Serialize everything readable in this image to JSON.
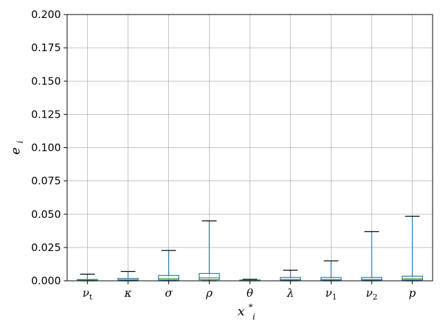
{
  "chart_data": {
    "type": "boxplot",
    "title": "",
    "xlabel": "x",
    "xlabel_sub": "i",
    "xlabel_sup": "*",
    "ylabel": "e",
    "ylabel_sub": "i",
    "ylim": [
      0,
      0.2
    ],
    "yticks": [
      "0.000",
      "0.025",
      "0.050",
      "0.075",
      "0.100",
      "0.125",
      "0.150",
      "0.175",
      "0.200"
    ],
    "grid": true,
    "categories": [
      {
        "base": "ν",
        "sub": "t"
      },
      {
        "base": "κ",
        "sub": ""
      },
      {
        "base": "σ",
        "sub": ""
      },
      {
        "base": "ρ",
        "sub": ""
      },
      {
        "base": "θ",
        "sub": ""
      },
      {
        "base": "λ",
        "sub": ""
      },
      {
        "base": "ν",
        "sub": "1"
      },
      {
        "base": "ν",
        "sub": "2"
      },
      {
        "base": "p",
        "sub": ""
      }
    ],
    "boxes": [
      {
        "min": 0.0,
        "q1": 0.0002,
        "median": 0.0005,
        "q3": 0.001,
        "max": 0.005
      },
      {
        "min": 0.0,
        "q1": 0.0003,
        "median": 0.0008,
        "q3": 0.0018,
        "max": 0.007
      },
      {
        "min": 0.0,
        "q1": 0.0005,
        "median": 0.0015,
        "q3": 0.004,
        "max": 0.0228
      },
      {
        "min": 0.0,
        "q1": 0.0008,
        "median": 0.0022,
        "q3": 0.0055,
        "max": 0.045
      },
      {
        "min": 0.0,
        "q1": 0.0001,
        "median": 0.0002,
        "q3": 0.0004,
        "max": 0.0012
      },
      {
        "min": 0.0,
        "q1": 0.0004,
        "median": 0.001,
        "q3": 0.0025,
        "max": 0.008
      },
      {
        "min": 0.0,
        "q1": 0.0004,
        "median": 0.001,
        "q3": 0.0025,
        "max": 0.015
      },
      {
        "min": 0.0,
        "q1": 0.0004,
        "median": 0.001,
        "q3": 0.0025,
        "max": 0.037
      },
      {
        "min": 0.0,
        "q1": 0.0006,
        "median": 0.0015,
        "q3": 0.0035,
        "max": 0.0485
      }
    ],
    "colors": {
      "box": "#1f77b4",
      "median": "#2ca02c",
      "cap": "#000000",
      "grid": "#b0b0b0",
      "axis": "#000000"
    }
  }
}
